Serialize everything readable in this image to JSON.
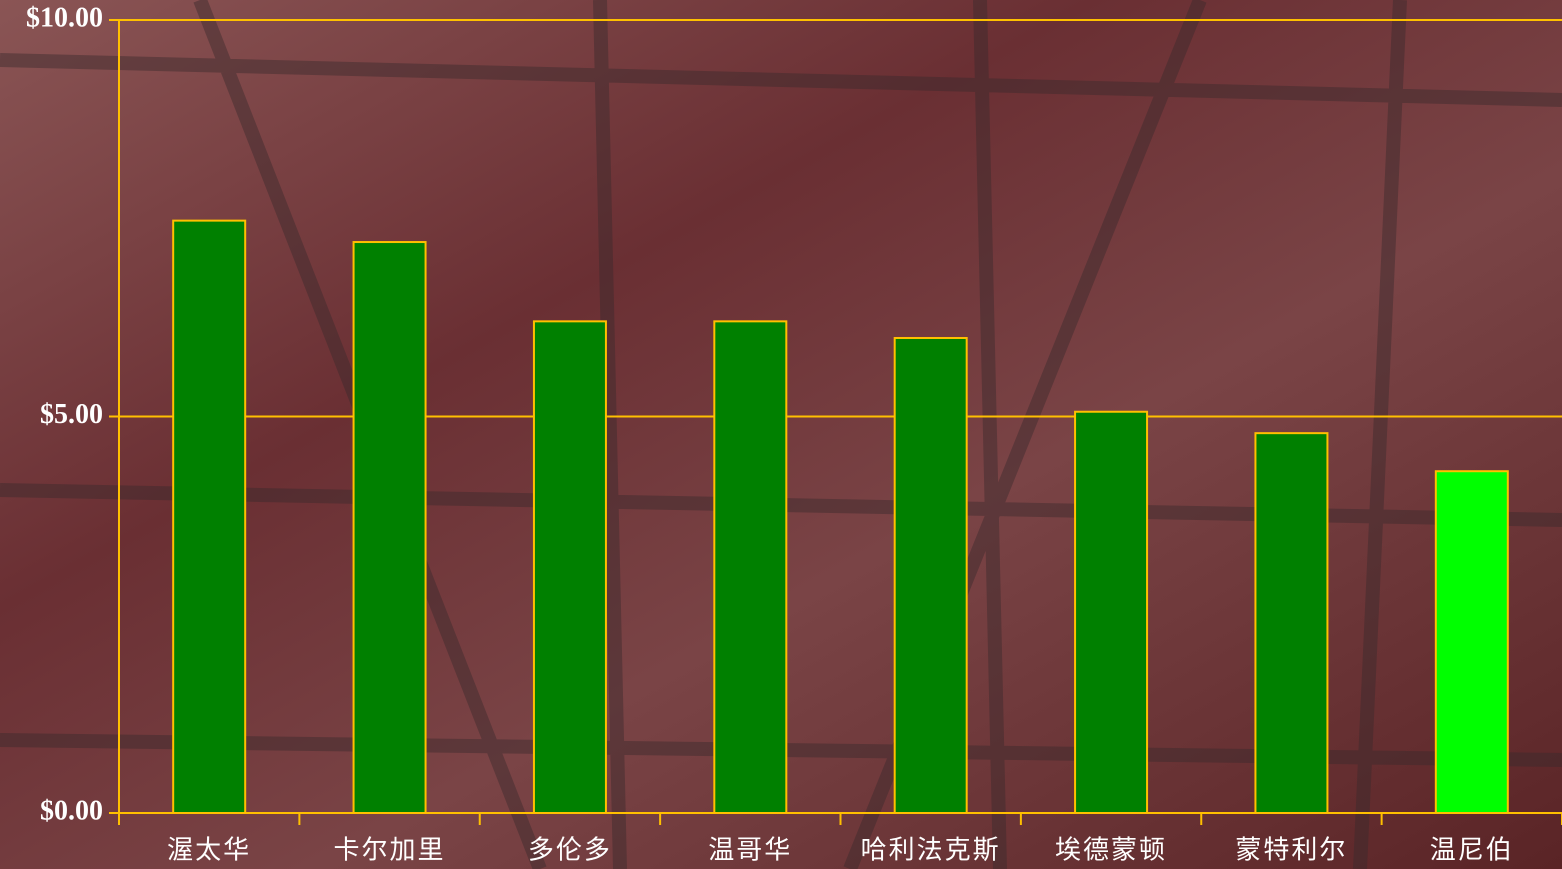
{
  "chart_data": {
    "type": "bar",
    "categories": [
      "渥太华",
      "卡尔加里",
      "多伦多",
      "温哥华",
      "哈利法克斯",
      "埃德蒙顿",
      "蒙特利尔",
      "温尼伯"
    ],
    "values": [
      7.47,
      7.2,
      6.2,
      6.2,
      5.99,
      5.06,
      4.79,
      4.31
    ],
    "colors": [
      "#008000",
      "#008000",
      "#008000",
      "#008000",
      "#008000",
      "#008000",
      "#008000",
      "#00ff00"
    ],
    "ylim": [
      0,
      10
    ],
    "yticks": [
      {
        "value": 0,
        "label": "$0.00"
      },
      {
        "value": 5,
        "label": "$5.00"
      },
      {
        "value": 10,
        "label": "$10.00"
      }
    ],
    "grid": true
  }
}
